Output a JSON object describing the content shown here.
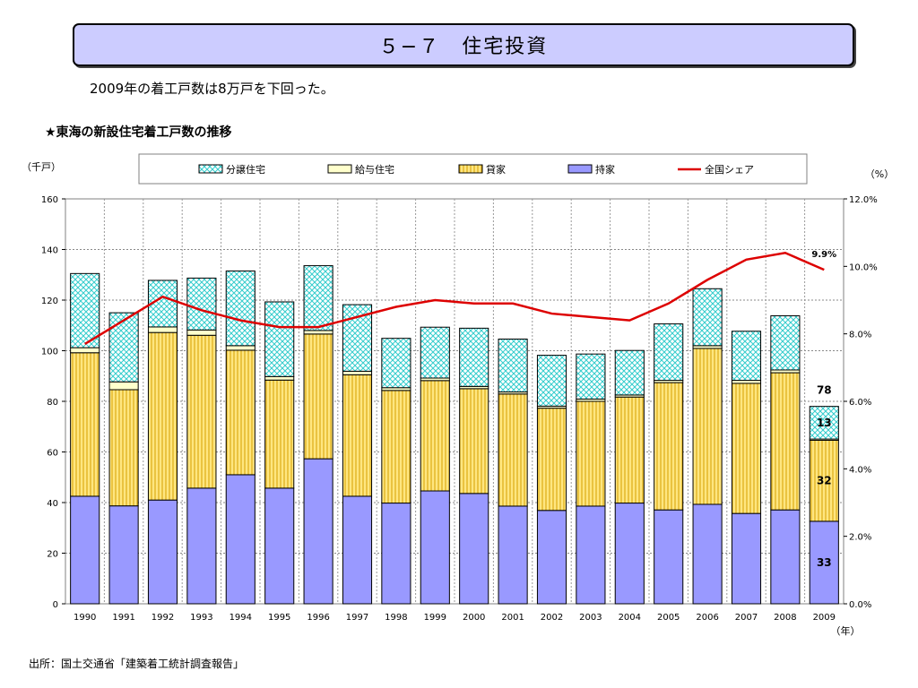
{
  "title": "５−７　住宅投資",
  "subtitle": "2009年の着工戸数は8万戸を下回った。",
  "chart_heading": "★東海の新設住宅着工戸数の推移",
  "source": "出所：国土交通省「建築着工統計調査報告」",
  "chart_data": {
    "type": "bar",
    "stacked": true,
    "categories": [
      "1990",
      "1991",
      "1992",
      "1993",
      "1994",
      "1995",
      "1996",
      "1997",
      "1998",
      "1999",
      "2000",
      "2001",
      "2002",
      "2003",
      "2004",
      "2005",
      "2006",
      "2007",
      "2008",
      "2009"
    ],
    "y_left_label": "（千戸）",
    "y_right_label": "（%）",
    "x_label": "（年）",
    "ylim": [
      0,
      160
    ],
    "y_ticks": [
      0,
      20,
      40,
      60,
      80,
      100,
      120,
      140,
      160
    ],
    "y2lim": [
      0,
      12
    ],
    "y2_ticks": [
      "0.0%",
      "2.0%",
      "4.0%",
      "6.0%",
      "8.0%",
      "10.0%",
      "12.0%"
    ],
    "grid": true,
    "legend_position": "top",
    "series": [
      {
        "name": "持家",
        "color": "#9999ff",
        "values": [
          42.5,
          38.7,
          41.0,
          45.7,
          51.0,
          45.7,
          57.3,
          42.5,
          39.8,
          44.6,
          43.6,
          38.6,
          36.9,
          38.6,
          39.8,
          37.1,
          39.3,
          35.7,
          37.1,
          32.6
        ]
      },
      {
        "name": "貸家",
        "color": "#ffcc33",
        "values": [
          56.7,
          45.9,
          66.2,
          60.4,
          49.2,
          42.7,
          49.3,
          48.0,
          44.5,
          43.6,
          41.4,
          44.3,
          40.4,
          41.4,
          41.9,
          50.3,
          61.6,
          51.4,
          54.2,
          32.0
        ]
      },
      {
        "name": "給与住宅",
        "color": "#ffffcc",
        "values": [
          2.0,
          3.1,
          2.2,
          2.1,
          1.8,
          1.4,
          1.4,
          1.4,
          1.1,
          1.0,
          0.9,
          0.8,
          0.8,
          0.9,
          0.8,
          0.9,
          1.1,
          1.2,
          1.1,
          0.5
        ]
      },
      {
        "name": "分譲住宅",
        "color": "#66ffff",
        "values": [
          29.3,
          27.3,
          18.4,
          20.5,
          29.5,
          29.5,
          25.6,
          26.3,
          19.5,
          20.1,
          23.0,
          20.9,
          20.1,
          17.8,
          17.6,
          22.3,
          22.5,
          19.4,
          21.4,
          12.9
        ]
      }
    ],
    "line_series": {
      "name": "全国シェア",
      "color": "#dd0000",
      "values": [
        7.7,
        8.4,
        9.1,
        8.7,
        8.4,
        8.2,
        8.2,
        8.5,
        8.8,
        9.0,
        8.9,
        8.9,
        8.6,
        8.5,
        8.4,
        8.9,
        9.6,
        10.2,
        10.4,
        9.9
      ]
    },
    "annotations": {
      "share_2009": "9.9%",
      "total_2009": "78",
      "bunjo_2009": "13",
      "kashiya_2009": "32",
      "mochiie_2009": "33"
    },
    "legend": [
      "分譲住宅",
      "給与住宅",
      "貸家",
      "持家",
      "全国シェア"
    ]
  }
}
